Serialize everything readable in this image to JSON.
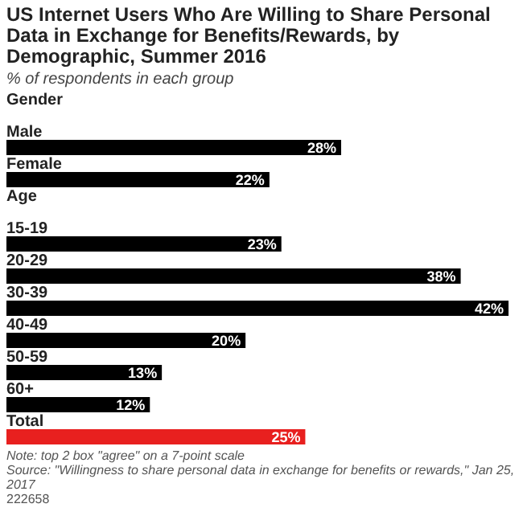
{
  "chart_data": {
    "type": "bar",
    "orientation": "horizontal",
    "title": "US Internet Users Who Are Willing to Share Personal Data in Exchange for Benefits/Rewards, by Demographic, Summer 2016",
    "subtitle": "% of respondents in each group",
    "categories": [
      "Gender",
      "Male",
      "Female",
      "Age",
      "15-19",
      "20-29",
      "30-39",
      "40-49",
      "50-59",
      "60+",
      "Total"
    ],
    "values": [
      null,
      28,
      22,
      null,
      23,
      38,
      42,
      20,
      13,
      12,
      25
    ],
    "value_labels": [
      null,
      "28%",
      "22%",
      null,
      "23%",
      "38%",
      "42%",
      "20%",
      "13%",
      "12%",
      "25%"
    ],
    "colors": [
      "#000000",
      "#000000",
      "#000000",
      "#000000",
      "#000000",
      "#000000",
      "#000000",
      "#000000",
      "#000000",
      "#000000",
      "#e8201f"
    ],
    "annotations": [
      "Note: top 2 box \"agree\" on a 7-point scale",
      "Source: \"Willingness to share personal data in exchange for benefits or rewards,\" Jan 25, 2017",
      "222658"
    ]
  }
}
